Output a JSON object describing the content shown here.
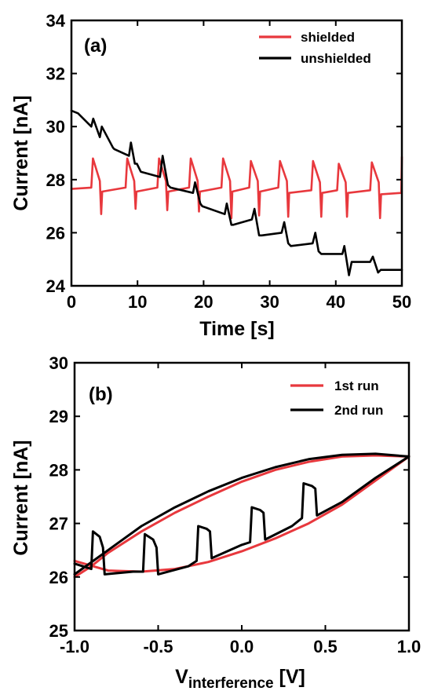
{
  "chart_data": [
    {
      "panel_label": "(a)",
      "type": "line",
      "xlabel": "Time [s]",
      "ylabel": "Current [nA]",
      "xlim": [
        0,
        50
      ],
      "ylim": [
        24,
        34
      ],
      "xticks": [
        0,
        10,
        20,
        30,
        40,
        50
      ],
      "yticks": [
        24,
        26,
        28,
        30,
        32,
        34
      ],
      "legend_position": "top-right",
      "grid": false,
      "series": [
        {
          "name": "shielded",
          "color": "#e8383d",
          "x": [
            0,
            3.0,
            3.25,
            4.3,
            4.5,
            4.65,
            8.2,
            8.45,
            9.5,
            9.7,
            9.85,
            13.0,
            13.25,
            14.3,
            14.5,
            14.65,
            17.8,
            18.05,
            19.1,
            19.3,
            19.45,
            22.7,
            22.95,
            24.0,
            24.2,
            24.35,
            26.9,
            27.15,
            28.2,
            28.4,
            28.55,
            31.3,
            31.55,
            32.6,
            32.8,
            32.95,
            36.3,
            36.55,
            37.6,
            37.8,
            37.95,
            40.2,
            40.45,
            41.5,
            41.7,
            41.85,
            45.2,
            45.45,
            46.5,
            46.7,
            46.85,
            49.9,
            50
          ],
          "y": [
            27.65,
            27.7,
            28.8,
            27.95,
            26.7,
            27.55,
            27.7,
            28.8,
            27.95,
            26.9,
            27.55,
            27.7,
            28.8,
            27.95,
            26.85,
            27.55,
            27.7,
            28.8,
            27.95,
            26.8,
            27.55,
            27.7,
            28.8,
            27.95,
            26.55,
            27.55,
            27.7,
            28.7,
            27.95,
            26.65,
            27.55,
            27.7,
            28.7,
            27.95,
            26.6,
            27.5,
            27.6,
            28.7,
            27.9,
            26.6,
            27.5,
            27.6,
            28.6,
            27.9,
            26.6,
            27.5,
            27.6,
            28.65,
            27.9,
            26.55,
            27.45,
            27.5,
            28.85
          ]
        },
        {
          "name": "unshielded",
          "color": "#000000",
          "x": [
            0,
            1,
            3.0,
            3.3,
            4.3,
            4.6,
            6.3,
            6.5,
            8.7,
            9.0,
            9.6,
            9.9,
            10.5,
            13.4,
            13.8,
            14.6,
            15.0,
            18.4,
            18.7,
            19.5,
            19.8,
            23.2,
            23.5,
            24.2,
            24.5,
            27.3,
            27.7,
            28.4,
            28.8,
            31.8,
            32.2,
            32.8,
            33.2,
            36.5,
            36.9,
            37.4,
            37.8,
            41.0,
            41.3,
            42.0,
            42.4,
            45.2,
            45.6,
            46.4,
            46.8,
            49.0,
            50
          ],
          "y": [
            30.6,
            30.5,
            30.0,
            30.3,
            29.6,
            30.0,
            29.2,
            29.15,
            28.9,
            29.4,
            28.6,
            28.6,
            28.3,
            28.1,
            28.9,
            27.8,
            27.7,
            27.5,
            27.9,
            27.1,
            27.0,
            26.7,
            27.1,
            26.3,
            26.3,
            26.5,
            26.9,
            25.9,
            25.9,
            26.0,
            26.4,
            25.6,
            25.5,
            25.6,
            26.0,
            25.3,
            25.2,
            25.2,
            25.5,
            24.4,
            24.9,
            24.9,
            25.1,
            24.5,
            24.6,
            24.6,
            24.6
          ]
        }
      ]
    },
    {
      "panel_label": "(b)",
      "type": "line",
      "xlabel_main": "V",
      "xlabel_sub": "interference",
      "xlabel_unit": " [V]",
      "ylabel": "Current [nA]",
      "xlim": [
        -1.0,
        1.0
      ],
      "ylim": [
        25,
        30
      ],
      "xticks": [
        -1.0,
        -0.5,
        0.0,
        0.5,
        1.0
      ],
      "xtick_labels": [
        "-1.0",
        "-0.5",
        "0.0",
        "0.5",
        "1.0"
      ],
      "yticks": [
        25,
        26,
        27,
        28,
        29,
        30
      ],
      "legend_position": "top-right",
      "grid": false,
      "series": [
        {
          "name": "1st run",
          "color": "#e8383d",
          "x": [
            -1.0,
            -0.9,
            -0.8,
            -0.6,
            -0.4,
            -0.2,
            0.0,
            0.2,
            0.4,
            0.6,
            0.8,
            1.0,
            0.8,
            0.6,
            0.4,
            0.2,
            0.0,
            -0.2,
            -0.4,
            -0.6,
            -0.8,
            -1.0
          ],
          "y": [
            26.0,
            26.2,
            26.45,
            26.85,
            27.2,
            27.5,
            27.78,
            28.0,
            28.15,
            28.25,
            28.27,
            28.25,
            27.8,
            27.35,
            27.0,
            26.72,
            26.48,
            26.28,
            26.15,
            26.1,
            26.12,
            26.3
          ]
        },
        {
          "name": "2nd run",
          "color": "#000000",
          "x": [
            -1.0,
            -0.8,
            -0.6,
            -0.4,
            -0.2,
            0.0,
            0.2,
            0.4,
            0.6,
            0.8,
            1.0,
            0.8,
            0.6,
            0.45,
            0.44,
            0.42,
            0.37,
            0.36,
            0.3,
            0.14,
            0.13,
            0.11,
            0.06,
            0.05,
            0.0,
            -0.18,
            -0.19,
            -0.21,
            -0.26,
            -0.27,
            -0.32,
            -0.5,
            -0.51,
            -0.53,
            -0.58,
            -0.59,
            -0.65,
            -0.82,
            -0.83,
            -0.85,
            -0.89,
            -0.9,
            -0.95,
            -1.0
          ],
          "y": [
            26.05,
            26.5,
            26.95,
            27.3,
            27.6,
            27.85,
            28.05,
            28.2,
            28.28,
            28.3,
            28.25,
            27.85,
            27.4,
            27.15,
            27.65,
            27.7,
            27.75,
            27.1,
            26.95,
            26.7,
            27.2,
            27.25,
            27.3,
            26.65,
            26.6,
            26.35,
            26.85,
            26.9,
            26.95,
            26.3,
            26.2,
            26.05,
            26.55,
            26.7,
            26.8,
            26.1,
            26.1,
            26.05,
            26.55,
            26.75,
            26.85,
            26.15,
            26.2,
            26.25
          ]
        }
      ]
    }
  ]
}
